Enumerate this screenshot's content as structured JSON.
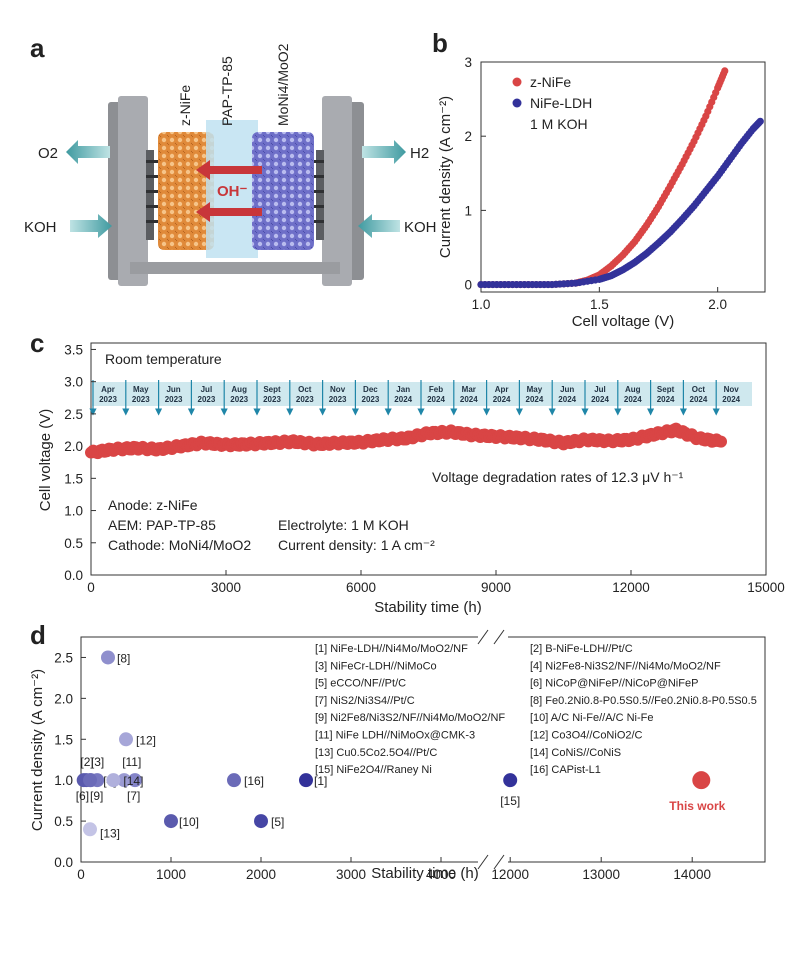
{
  "panels": {
    "a": "a",
    "b": "b",
    "c": "c",
    "d": "d"
  },
  "colors": {
    "red": "#d94545",
    "navy": "#33329a",
    "teal": "#3f9aa0"
  },
  "diagram": {
    "anode_label": "z-NiFe",
    "membrane_label": "PAP-TP-85",
    "cathode_label": "MoNi4/MoO2",
    "ion_label": "OH⁻",
    "o2_label": "O2",
    "h2_label": "H2",
    "koh_left": "KOH",
    "koh_right": "KOH"
  },
  "chart_data": [
    {
      "id": "b",
      "type": "scatter",
      "xlabel": "Cell voltage (V)",
      "ylabel": "Current density (A cm⁻²)",
      "xlim": [
        1.0,
        2.2
      ],
      "ylim": [
        -0.1,
        3.0
      ],
      "xticks": [
        "1.0",
        "1.5",
        "2.0"
      ],
      "yticks": [
        "0",
        "1",
        "2",
        "3"
      ],
      "legend_note": "1 M KOH",
      "series": [
        {
          "name": "z-NiFe",
          "color": "#d94545",
          "x": [
            1.0,
            1.1,
            1.2,
            1.3,
            1.4,
            1.45,
            1.5,
            1.55,
            1.6,
            1.65,
            1.7,
            1.75,
            1.8,
            1.85,
            1.9,
            1.95,
            2.0,
            2.03
          ],
          "y": [
            0,
            0,
            0,
            0,
            0.02,
            0.06,
            0.13,
            0.25,
            0.4,
            0.58,
            0.8,
            1.05,
            1.33,
            1.62,
            1.93,
            2.27,
            2.65,
            2.88
          ]
        },
        {
          "name": "NiFe-LDH",
          "color": "#33329a",
          "x": [
            1.0,
            1.1,
            1.2,
            1.3,
            1.4,
            1.5,
            1.55,
            1.6,
            1.65,
            1.7,
            1.75,
            1.8,
            1.85,
            1.9,
            1.95,
            2.0,
            2.05,
            2.1,
            2.15,
            2.18
          ],
          "y": [
            0,
            0,
            0,
            0,
            0.02,
            0.07,
            0.12,
            0.2,
            0.3,
            0.42,
            0.56,
            0.71,
            0.88,
            1.06,
            1.26,
            1.46,
            1.68,
            1.9,
            2.1,
            2.2
          ]
        }
      ]
    },
    {
      "id": "c",
      "type": "scatter",
      "xlabel": "Stability time (h)",
      "ylabel": "Cell voltage (V)",
      "xlim": [
        0,
        15000
      ],
      "ylim": [
        0,
        3.6
      ],
      "xticks": [
        "0",
        "3000",
        "6000",
        "9000",
        "12000",
        "15000"
      ],
      "yticks": [
        "0.0",
        "0.5",
        "1.0",
        "1.5",
        "2.0",
        "2.5",
        "3.0",
        "3.5"
      ],
      "room_temp": "Room temperature",
      "degradation": "Voltage degradation rates of 12.3 μV h⁻¹",
      "conditions": {
        "anode": "Anode: z-NiFe",
        "aem": "AEM: PAP-TP-85",
        "cathode": "Cathode: MoNi4/MoO2",
        "electrolyte": "Electrolyte: 1 M KOH",
        "current": "Current density: 1 A cm⁻²"
      },
      "months": [
        {
          "m": "Apr",
          "y": "2023"
        },
        {
          "m": "May",
          "y": "2023"
        },
        {
          "m": "Jun",
          "y": "2023"
        },
        {
          "m": "Jul",
          "y": "2023"
        },
        {
          "m": "Aug",
          "y": "2023"
        },
        {
          "m": "Sept",
          "y": "2023"
        },
        {
          "m": "Oct",
          "y": "2023"
        },
        {
          "m": "Nov",
          "y": "2023"
        },
        {
          "m": "Dec",
          "y": "2023"
        },
        {
          "m": "Jan",
          "y": "2024"
        },
        {
          "m": "Feb",
          "y": "2024"
        },
        {
          "m": "Mar",
          "y": "2024"
        },
        {
          "m": "Apr",
          "y": "2024"
        },
        {
          "m": "May",
          "y": "2024"
        },
        {
          "m": "Jun",
          "y": "2024"
        },
        {
          "m": "Jul",
          "y": "2024"
        },
        {
          "m": "Aug",
          "y": "2024"
        },
        {
          "m": "Sept",
          "y": "2024"
        },
        {
          "m": "Oct",
          "y": "2024"
        },
        {
          "m": "Nov",
          "y": "2024"
        }
      ],
      "series": [
        {
          "name": "Cell voltage",
          "color": "#d94545",
          "x": [
            0,
            500,
            1000,
            1500,
            2000,
            2500,
            3000,
            3500,
            4000,
            4500,
            5000,
            5500,
            6000,
            6500,
            7000,
            7500,
            8000,
            8500,
            9000,
            9500,
            10000,
            10500,
            11000,
            11500,
            12000,
            12500,
            13000,
            13500,
            14000
          ],
          "y": [
            1.9,
            1.95,
            1.97,
            1.95,
            2.0,
            2.05,
            2.02,
            2.03,
            2.05,
            2.07,
            2.03,
            2.05,
            2.06,
            2.1,
            2.12,
            2.2,
            2.22,
            2.17,
            2.15,
            2.13,
            2.1,
            2.05,
            2.1,
            2.08,
            2.1,
            2.18,
            2.25,
            2.12,
            2.07
          ]
        }
      ]
    },
    {
      "id": "d",
      "type": "scatter",
      "xlabel": "Stability time (h)",
      "ylabel": "Current density (A cm⁻²)",
      "xlim": [
        0,
        14800
      ],
      "ylim": [
        0,
        2.75
      ],
      "xticks": [
        "0",
        "1000",
        "2000",
        "3000",
        "4000",
        "12000",
        "13000",
        "14000"
      ],
      "yticks": [
        "0.0",
        "0.5",
        "1.0",
        "1.5",
        "2.0",
        "2.5"
      ],
      "break_range": [
        4500,
        11800
      ],
      "this_work_label": "This work",
      "points": [
        {
          "label": "[1]",
          "x": 2500,
          "y": 1.0,
          "color": "#33329a"
        },
        {
          "label": "[2]",
          "x": 60,
          "y": 1.0,
          "color": "#5a5aad"
        },
        {
          "label": "[3]",
          "x": 110,
          "y": 1.0,
          "color": "#6b6bb8"
        },
        {
          "label": "[4]",
          "x": 180,
          "y": 1.0,
          "color": "#7777c0"
        },
        {
          "label": "[5]",
          "x": 2000,
          "y": 0.5,
          "color": "#4646a5"
        },
        {
          "label": "[6]",
          "x": 30,
          "y": 1.0,
          "color": "#5a5aad"
        },
        {
          "label": "[7]",
          "x": 600,
          "y": 1.0,
          "color": "#8484c8"
        },
        {
          "label": "[8]",
          "x": 300,
          "y": 2.5,
          "color": "#8f8fcd"
        },
        {
          "label": "[9]",
          "x": 100,
          "y": 1.0,
          "color": "#6b6bb8"
        },
        {
          "label": "[10]",
          "x": 1000,
          "y": 0.5,
          "color": "#5a5aad"
        },
        {
          "label": "[11]",
          "x": 480,
          "y": 1.0,
          "color": "#9a9ad2"
        },
        {
          "label": "[12]",
          "x": 500,
          "y": 1.5,
          "color": "#a6a6d8"
        },
        {
          "label": "[13]",
          "x": 100,
          "y": 0.4,
          "color": "#c4c4e6"
        },
        {
          "label": "[14]",
          "x": 360,
          "y": 1.0,
          "color": "#b0b0dc"
        },
        {
          "label": "[15]",
          "x": 12000,
          "y": 1.0,
          "color": "#33329a"
        },
        {
          "label": "[16]",
          "x": 1700,
          "y": 1.0,
          "color": "#6b6bb8"
        },
        {
          "label": "This work",
          "x": 14100,
          "y": 1.0,
          "color": "#d94545"
        }
      ],
      "references": [
        "[1] NiFe-LDH//Ni4Mo/MoO2/NF",
        "[2] B-NiFe-LDH//Pt/C",
        "[3] NiFeCr-LDH//NiMoCo",
        "[4] Ni2Fe8-Ni3S2/NF//Ni4Mo/MoO2/NF",
        "[5] eCCO/NF//Pt/C",
        "[6] NiCoP@NiFeP//NiCoP@NiFeP",
        "[7] NiS2/Ni3S4//Pt/C",
        "[8] Fe0.2Ni0.8-P0.5S0.5//Fe0.2Ni0.8-P0.5S0.5",
        "[9] Ni2Fe8/Ni3S2/NF//Ni4Mo/MoO2/NF",
        "[10] A/C Ni-Fe//A/C Ni-Fe",
        "[11] NiFe LDH//NiMoOx@CMK-3",
        "[12] Co3O4//CoNiO2/C",
        "[13] Cu0.5Co2.5O4//Pt/C",
        "[14] CoNiS//CoNiS",
        "[15] NiFe2O4//Raney Ni",
        "[16] CAPist-L1"
      ]
    }
  ]
}
